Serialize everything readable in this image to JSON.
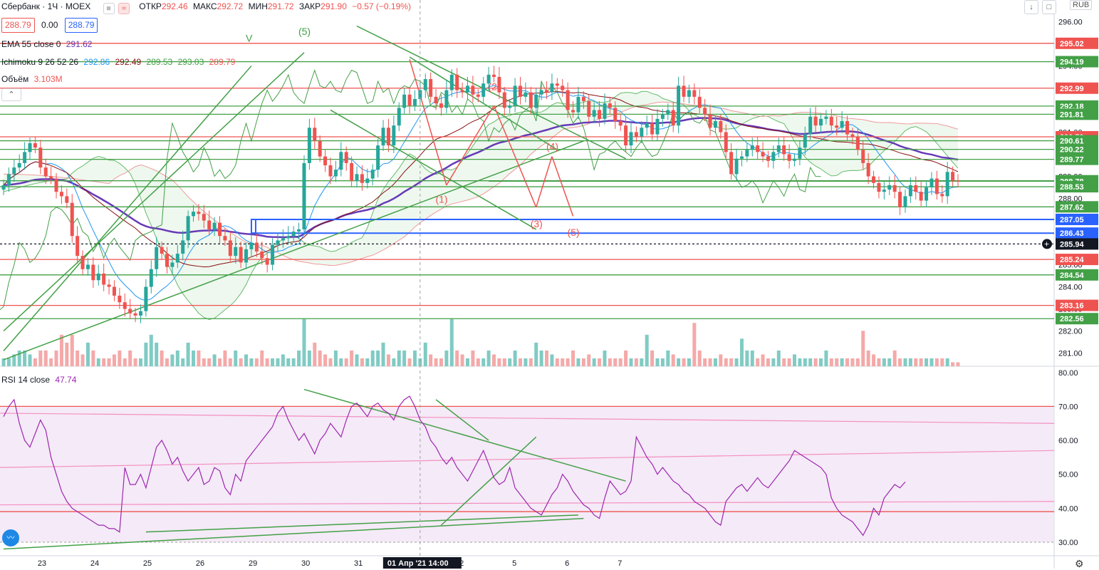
{
  "header": {
    "symbol": "Сбербанк · 1Ч · MOEX",
    "open_label": "ОТКР",
    "open": "292.46",
    "high_label": "МАКС",
    "high": "292.72",
    "low_label": "МИН",
    "low": "291.72",
    "close_label": "ЗАКР",
    "close": "291.90",
    "change": "−0.57 (−0.19%)",
    "bid": "288.79",
    "spread": "0.00",
    "ask": "288.79",
    "currency": "RUB"
  },
  "indicators": {
    "ema": {
      "label": "EMA 55 close 0",
      "value": "291.62",
      "color": "#673ab7"
    },
    "ichimoku": {
      "label": "Ichimoku 9 26 52 26",
      "values": [
        {
          "v": "292.86",
          "color": "#2196f3"
        },
        {
          "v": "292.49",
          "color": "#880e0e"
        },
        {
          "v": "289.53",
          "color": "#43a047"
        },
        {
          "v": "293.03",
          "color": "#43a047"
        },
        {
          "v": "289.79",
          "color": "#ef5350"
        }
      ]
    },
    "volume": {
      "label": "Объём",
      "value": "3.103M"
    },
    "rsi": {
      "label": "RSI 14 close",
      "value": "47.74",
      "color": "#9c27b0"
    }
  },
  "chart_data": [
    {
      "type": "candlestick",
      "x_ticks": [
        "23",
        "24",
        "25",
        "26",
        "29",
        "30",
        "31",
        "01 Апр '21  14:00",
        "2",
        "5",
        "6",
        "7"
      ],
      "y_ticks": [
        "296.00",
        "295.00",
        "294.00",
        "293.00",
        "292.00",
        "291.00",
        "290.00",
        "289.00",
        "288.00",
        "287.00",
        "286.00",
        "285.00",
        "284.00",
        "283.00",
        "282.00",
        "281.00"
      ],
      "ylim": [
        280.6,
        296.4
      ],
      "close": [
        288.6,
        289.1,
        289.4,
        289.6,
        290.1,
        290.5,
        290.3,
        289.4,
        289.0,
        288.9,
        288.3,
        288.1,
        287.8,
        286.3,
        285.4,
        284.8,
        285.0,
        284.3,
        284.6,
        284.1,
        284.0,
        283.6,
        283.3,
        283.0,
        282.8,
        282.7,
        282.9,
        284.0,
        284.8,
        285.8,
        285.5,
        284.9,
        285.1,
        285.5,
        286.1,
        287.2,
        287.4,
        287.3,
        287.0,
        286.6,
        286.9,
        286.3,
        286.1,
        285.4,
        285.8,
        285.1,
        285.7,
        286.0,
        285.6,
        285.3,
        285.0,
        285.9,
        286.1,
        286.2,
        286.3,
        286.5,
        286.6,
        289.6,
        291.2,
        290.6,
        289.9,
        289.5,
        289.0,
        289.3,
        290.1,
        289.6,
        288.8,
        289.1,
        288.7,
        288.9,
        289.3,
        290.4,
        291.2,
        290.4,
        291.3,
        292.1,
        292.7,
        292.2,
        292.5,
        292.9,
        293.4,
        292.6,
        292.3,
        292.1,
        292.9,
        293.6,
        292.9,
        292.8,
        293.1,
        292.7,
        292.6,
        293.2,
        293.6,
        293.5,
        292.8,
        292.1,
        292.2,
        293.1,
        292.6,
        292.8,
        292.1,
        292.7,
        292.9,
        292.8,
        293.2,
        293.1,
        292.9,
        292.0,
        291.9,
        292.6,
        292.4,
        291.7,
        292.0,
        291.6,
        292.3,
        292.1,
        291.5,
        291.3,
        290.4,
        291.0,
        290.8,
        291.2,
        291.4,
        290.9,
        291.6,
        291.8,
        292.0,
        291.3,
        293.1,
        292.6,
        292.9,
        292.6,
        292.1,
        291.8,
        291.2,
        291.5,
        291.0,
        290.1,
        289.1,
        289.8,
        289.9,
        290.2,
        290.4,
        290.1,
        289.9,
        289.7,
        290.1,
        290.4,
        290.0,
        289.7,
        289.8,
        290.3,
        290.9,
        291.7,
        291.3,
        291.6,
        291.7,
        291.3,
        291.2,
        291.5,
        290.9,
        290.8,
        290.2,
        289.6,
        289.0,
        288.7,
        288.3,
        288.4,
        288.6,
        288.3,
        287.6,
        288.1,
        288.6,
        288.3,
        287.9,
        288.5,
        288.9,
        288.2,
        288.1,
        289.2,
        288.8,
        288.79
      ],
      "volume_ylim": [
        0,
        1
      ],
      "volume": [
        0.1,
        0.1,
        0.15,
        0.2,
        0.2,
        0.15,
        0.1,
        0.2,
        0.2,
        0.1,
        0.2,
        0.4,
        0.3,
        0.4,
        0.2,
        0.15,
        0.3,
        0.2,
        0.1,
        0.1,
        0.1,
        0.15,
        0.2,
        0.1,
        0.2,
        0.1,
        0.1,
        0.3,
        0.4,
        0.3,
        0.2,
        0.1,
        0.15,
        0.2,
        0.1,
        0.3,
        0.2,
        0.2,
        0.1,
        0.1,
        0.15,
        0.1,
        0.2,
        0.1,
        0.2,
        0.1,
        0.15,
        0.1,
        0.1,
        0.2,
        0.1,
        0.1,
        0.1,
        0.15,
        0.1,
        0.1,
        0.2,
        0.6,
        0.2,
        0.3,
        0.2,
        0.15,
        0.1,
        0.2,
        0.1,
        0.1,
        0.2,
        0.15,
        0.1,
        0.1,
        0.2,
        0.2,
        0.3,
        0.15,
        0.1,
        0.2,
        0.2,
        0.1,
        0.2,
        0.1,
        0.3,
        0.15,
        0.1,
        0.1,
        0.2,
        0.6,
        0.2,
        0.15,
        0.1,
        0.2,
        0.1,
        0.1,
        0.2,
        0.15,
        0.1,
        0.1,
        0.1,
        0.2,
        0.1,
        0.1,
        0.1,
        0.3,
        0.2,
        0.2,
        0.15,
        0.1,
        0.1,
        0.1,
        0.2,
        0.1,
        0.1,
        0.15,
        0.1,
        0.1,
        0.2,
        0.1,
        0.1,
        0.1,
        0.2,
        0.1,
        0.1,
        0.1,
        0.4,
        0.2,
        0.1,
        0.1,
        0.2,
        0.15,
        0.1,
        0.1,
        0.1,
        0.55,
        0.2,
        0.1,
        0.1,
        0.1,
        0.15,
        0.1,
        0.1,
        0.1,
        0.35,
        0.2,
        0.2,
        0.1,
        0.15,
        0.1,
        0.1,
        0.2,
        0.1,
        0.1,
        0.15,
        0.1,
        0.1,
        0.1,
        0.1,
        0.1,
        0.2,
        0.1,
        0.1,
        0.1,
        0.1,
        0.1,
        0.1,
        0.45,
        0.2,
        0.15,
        0.1,
        0.1,
        0.1,
        0.2,
        0.1,
        0.1,
        0.1,
        0.1,
        0.1,
        0.1,
        0.1,
        0.1,
        0.1,
        0.1,
        0.05,
        0.05
      ],
      "hlines": [
        {
          "price": 295.02,
          "label": "295.02",
          "color": "#ef5350"
        },
        {
          "price": 294.19,
          "label": "294.19",
          "color": "#43a047"
        },
        {
          "price": 292.99,
          "label": "292.99",
          "color": "#ef5350"
        },
        {
          "price": 292.18,
          "label": "292.18",
          "color": "#43a047"
        },
        {
          "price": 291.81,
          "label": "291.81",
          "color": "#43a047"
        },
        {
          "price": 290.79,
          "label": "290.79",
          "color": "#ef5350"
        },
        {
          "price": 290.61,
          "label": "290.61",
          "color": "#43a047"
        },
        {
          "price": 290.22,
          "label": "290.22",
          "color": "#43a047"
        },
        {
          "price": 289.77,
          "label": "289.77",
          "color": "#43a047"
        },
        {
          "price": 288.8,
          "label": "288.80",
          "color": "#43a047"
        },
        {
          "price": 288.78,
          "label": "288.78",
          "color": "#43a047"
        },
        {
          "price": 288.53,
          "label": "288.53",
          "color": "#43a047"
        },
        {
          "price": 287.62,
          "label": "287.62",
          "color": "#43a047"
        },
        {
          "price": 287.05,
          "label": "287.05",
          "color": "#2962ff"
        },
        {
          "price": 286.43,
          "label": "286.43",
          "color": "#2962ff"
        },
        {
          "price": 285.94,
          "label": "285.94",
          "color": "#131722"
        },
        {
          "price": 285.24,
          "label": "285.24",
          "color": "#ef5350"
        },
        {
          "price": 284.54,
          "label": "284.54",
          "color": "#43a047"
        },
        {
          "price": 283.16,
          "label": "283.16",
          "color": "#ef5350"
        },
        {
          "price": 282.56,
          "label": "282.56",
          "color": "#43a047"
        }
      ],
      "wave_labels": [
        {
          "text": "(5)",
          "bar": 57,
          "price": 295.4,
          "color": "#43a047"
        },
        {
          "text": "V",
          "bar": 47,
          "price": 295.1,
          "color": "#43a047"
        },
        {
          "text": "(1)",
          "bar": 83,
          "price": 287.8,
          "color": "#ef5350"
        },
        {
          "text": "(2)",
          "bar": 93,
          "price": 292.9,
          "color": "#ef5350"
        },
        {
          "text": "(3)",
          "bar": 101,
          "price": 286.7,
          "color": "#ef5350"
        },
        {
          "text": "(4)",
          "bar": 104,
          "price": 290.2,
          "color": "#ef5350"
        },
        {
          "text": "(5)",
          "bar": 108,
          "price": 286.3,
          "color": "#ef5350"
        }
      ]
    },
    {
      "type": "line",
      "name": "RSI 14 close",
      "y_ticks": [
        "80.00",
        "70.00",
        "60.00",
        "50.00",
        "40.00",
        "30.00"
      ],
      "ylim": [
        26,
        81
      ],
      "values": [
        67,
        70,
        72,
        65,
        60,
        58,
        62,
        66,
        63,
        55,
        50,
        45,
        42,
        40,
        39,
        38,
        37,
        36,
        35,
        35,
        34,
        34,
        33,
        52,
        47,
        47,
        50,
        46,
        52,
        58,
        60,
        57,
        53,
        55,
        51,
        48,
        50,
        52,
        47,
        48,
        52,
        51,
        46,
        44,
        50,
        48,
        54,
        56,
        58,
        60,
        62,
        64,
        68,
        70,
        66,
        63,
        60,
        62,
        59,
        56,
        60,
        62,
        65,
        63,
        61,
        66,
        70,
        71,
        69,
        67,
        70,
        71,
        69,
        68,
        66,
        70,
        72,
        73,
        70,
        66,
        64,
        60,
        58,
        55,
        53,
        55,
        52,
        50,
        48,
        51,
        54,
        57,
        53,
        49,
        47,
        48,
        52,
        46,
        44,
        42,
        40,
        39,
        38,
        41,
        44,
        46,
        50,
        48,
        45,
        43,
        41,
        40,
        38,
        37,
        43,
        48,
        46,
        44,
        45,
        48,
        61,
        58,
        55,
        53,
        50,
        52,
        50,
        48,
        47,
        45,
        44,
        42,
        41,
        40,
        38,
        36,
        35,
        42,
        44,
        46,
        47,
        45,
        47,
        49,
        47,
        46,
        48,
        50,
        52,
        54,
        57,
        56,
        55,
        54,
        53,
        52,
        50,
        43,
        40,
        38,
        37,
        36,
        34,
        32,
        35,
        40,
        38,
        43,
        45,
        47,
        46,
        47.74
      ]
    }
  ]
}
